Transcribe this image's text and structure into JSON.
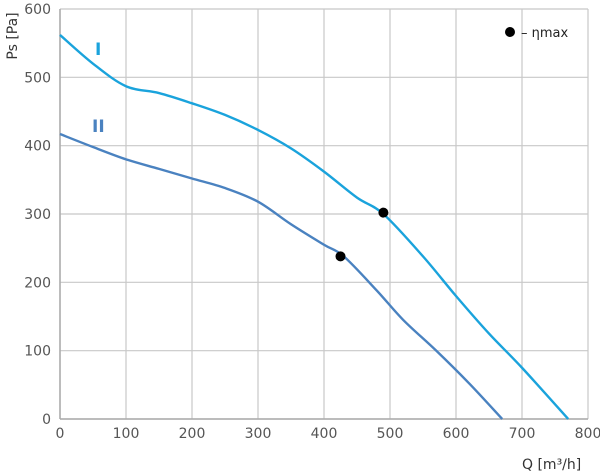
{
  "chart_data": {
    "type": "line",
    "title": "",
    "xlabel": "Q [m³/h]",
    "ylabel": "Ps [Pa]",
    "xlim": [
      0,
      800
    ],
    "ylim": [
      0,
      600
    ],
    "xticks": [
      0,
      100,
      200,
      300,
      400,
      500,
      600,
      700,
      800
    ],
    "yticks": [
      0,
      100,
      200,
      300,
      400,
      500,
      600
    ],
    "grid": true,
    "legend": {
      "marker_label": "– ηmax",
      "position": "top-right"
    },
    "colors": {
      "I": "#1aa3dc",
      "II": "#4a82c0",
      "grid": "#c8c8c8",
      "marker": "#000000"
    },
    "series": [
      {
        "name": "I",
        "x": [
          0,
          50,
          100,
          150,
          200,
          250,
          300,
          350,
          400,
          450,
          490,
          550,
          600,
          650,
          700,
          770
        ],
        "y": [
          562,
          520,
          487,
          477,
          462,
          445,
          423,
          396,
          362,
          324,
          300,
          238,
          180,
          125,
          75,
          0
        ],
        "max_efficiency_point": {
          "x": 490,
          "y": 302
        }
      },
      {
        "name": "II",
        "x": [
          0,
          50,
          100,
          150,
          200,
          250,
          300,
          350,
          400,
          430,
          480,
          520,
          570,
          620,
          670
        ],
        "y": [
          417,
          398,
          380,
          366,
          352,
          338,
          318,
          285,
          255,
          238,
          188,
          145,
          100,
          52,
          0
        ],
        "max_efficiency_point": {
          "x": 425,
          "y": 238
        }
      }
    ]
  }
}
